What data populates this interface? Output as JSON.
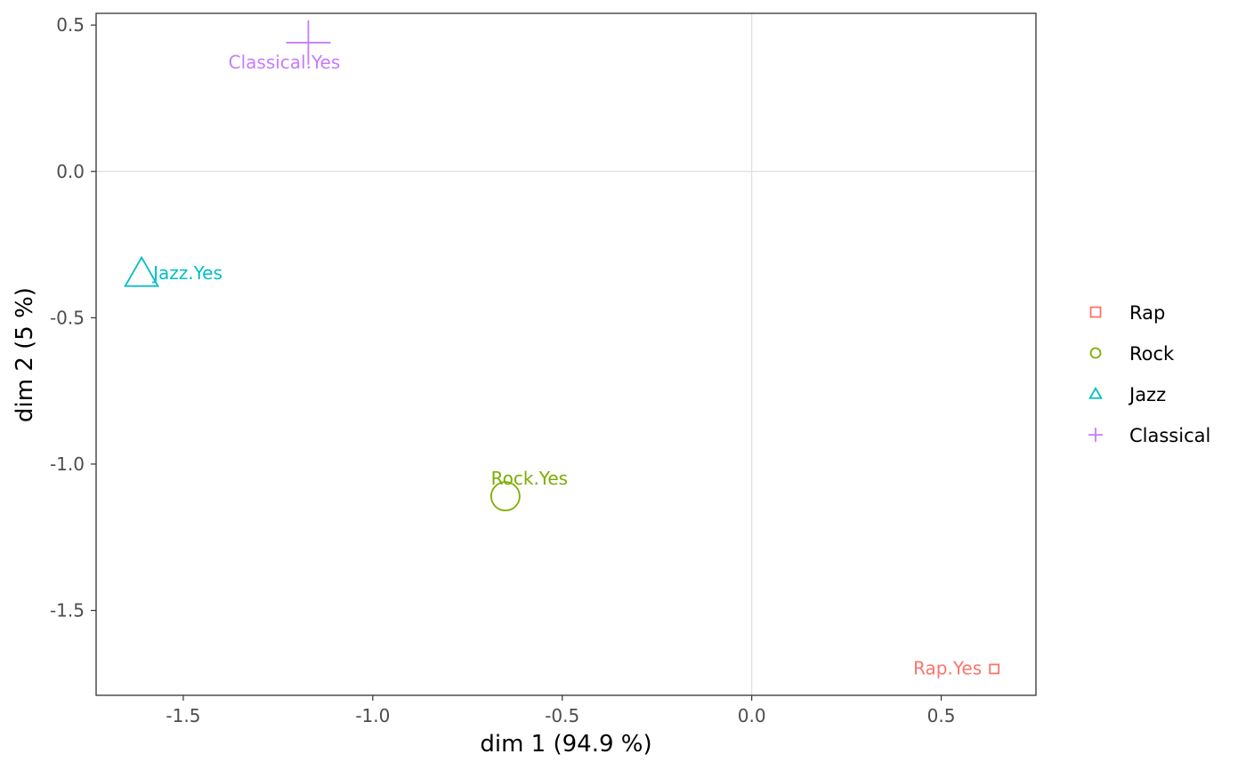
{
  "chart_data": {
    "type": "scatter",
    "title": "",
    "xlabel": "dim 1 (94.9 %)",
    "ylabel": "dim 2 (5 %)",
    "xlim": [
      -1.73,
      0.75
    ],
    "ylim": [
      -1.79,
      0.54
    ],
    "x_ticks": [
      -1.5,
      -1.0,
      -0.5,
      0.0,
      0.5
    ],
    "x_tick_labels": [
      "-1.5",
      "-1.0",
      "-0.5",
      "0.0",
      "0.5"
    ],
    "y_ticks": [
      0.5,
      0.0,
      -0.5,
      -1.0,
      -1.5
    ],
    "y_tick_labels": [
      "0.5",
      "0.0",
      "-0.5",
      "-1.0",
      "-1.5"
    ],
    "reference_lines": {
      "x": 0,
      "y": 0
    },
    "grid": false,
    "legend_position": "right",
    "series": [
      {
        "name": "Rap",
        "shape": "square",
        "color": "#F8766D",
        "size": 1,
        "points": [
          {
            "x": 0.64,
            "y": -1.7,
            "label": "Rap.Yes",
            "label_anchor": "end"
          }
        ]
      },
      {
        "name": "Rock",
        "shape": "circle",
        "color": "#7CAE00",
        "size": 3.2,
        "points": [
          {
            "x": -0.65,
            "y": -1.11,
            "label": "Rock.Yes",
            "label_anchor": "above"
          }
        ]
      },
      {
        "name": "Jazz",
        "shape": "triangle",
        "color": "#00BFC4",
        "size": 3.2,
        "points": [
          {
            "x": -1.61,
            "y": -0.35,
            "label": "Jazz.Yes",
            "label_anchor": "start"
          }
        ]
      },
      {
        "name": "Classical",
        "shape": "plus",
        "color": "#C77CFF",
        "size": 5,
        "points": [
          {
            "x": -1.17,
            "y": 0.44,
            "label": "Classical.Yes",
            "label_anchor": "below"
          }
        ]
      }
    ]
  }
}
